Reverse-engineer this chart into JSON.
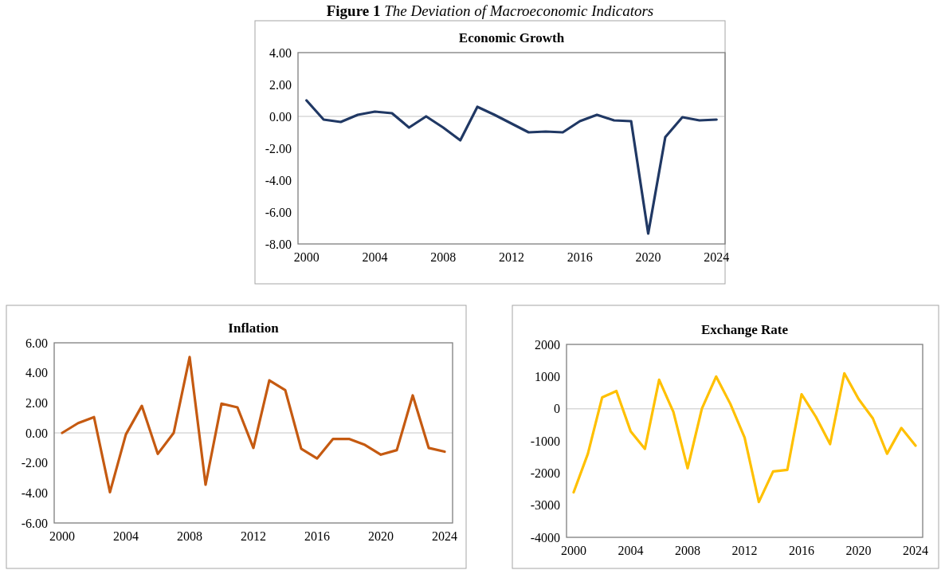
{
  "chart_data": [
    {
      "type": "line",
      "title": "Economic Growth",
      "annotations": [
        "Figure 1 The Deviation of Macroeconomic Indicators"
      ],
      "x": [
        2000,
        2001,
        2002,
        2003,
        2004,
        2005,
        2006,
        2007,
        2008,
        2009,
        2010,
        2011,
        2012,
        2013,
        2014,
        2015,
        2016,
        2017,
        2018,
        2019,
        2020,
        2021,
        2022,
        2023,
        2024
      ],
      "series": [
        {
          "color": "#203864",
          "values": [
            1.0,
            -0.2,
            -0.35,
            0.1,
            0.3,
            0.2,
            -0.7,
            0.0,
            -0.7,
            -1.5,
            0.6,
            0.1,
            -0.45,
            -1.0,
            -0.95,
            -1.0,
            -0.3,
            0.1,
            -0.25,
            -0.3,
            -7.35,
            -1.3,
            -0.05,
            -0.25,
            -0.2
          ]
        }
      ],
      "xlim": [
        1999.5,
        2024.5
      ],
      "xticks": [
        2000,
        2004,
        2008,
        2012,
        2016,
        2020,
        2024
      ],
      "ylim": [
        -8,
        4
      ],
      "yticks": [
        {
          "value": -8,
          "label": "-8.00"
        },
        {
          "value": -6,
          "label": "-6.00"
        },
        {
          "value": -4,
          "label": "-4.00"
        },
        {
          "value": -2,
          "label": "-2.00"
        },
        {
          "value": 0,
          "label": "0.00"
        },
        {
          "value": 2,
          "label": "2.00"
        },
        {
          "value": 4,
          "label": "4.00"
        }
      ],
      "ref_lines": [
        {
          "axis": "y",
          "value": 0,
          "color": "#d9d9d9"
        }
      ],
      "grid": false,
      "marker": "none",
      "line_style": "solid"
    },
    {
      "type": "line",
      "title": "Inflation",
      "x": [
        2000,
        2001,
        2002,
        2003,
        2004,
        2005,
        2006,
        2007,
        2008,
        2009,
        2010,
        2011,
        2012,
        2013,
        2014,
        2015,
        2016,
        2017,
        2018,
        2019,
        2020,
        2021,
        2022,
        2023,
        2024
      ],
      "series": [
        {
          "color": "#c55a11",
          "values": [
            0.0,
            0.65,
            1.05,
            -3.95,
            -0.1,
            1.8,
            -1.4,
            0.0,
            5.05,
            -3.45,
            1.95,
            1.7,
            -1.0,
            3.5,
            2.85,
            -1.05,
            -1.7,
            -0.4,
            -0.4,
            -0.8,
            -1.45,
            -1.15,
            2.5,
            -1.0,
            -1.25
          ]
        }
      ],
      "xlim": [
        1999.5,
        2024.5
      ],
      "xticks": [
        2000,
        2004,
        2008,
        2012,
        2016,
        2020,
        2024
      ],
      "ylim": [
        -6,
        6
      ],
      "yticks": [
        {
          "value": -6,
          "label": "-6.00"
        },
        {
          "value": -4,
          "label": "-4.00"
        },
        {
          "value": -2,
          "label": "-2.00"
        },
        {
          "value": 0,
          "label": "0.00"
        },
        {
          "value": 2,
          "label": "2.00"
        },
        {
          "value": 4,
          "label": "4.00"
        },
        {
          "value": 6,
          "label": "6.00"
        }
      ],
      "ref_lines": [
        {
          "axis": "y",
          "value": 0,
          "color": "#d9d9d9"
        }
      ],
      "grid": false,
      "marker": "none",
      "line_style": "solid"
    },
    {
      "type": "line",
      "title": "Exchange Rate",
      "x": [
        2000,
        2001,
        2002,
        2003,
        2004,
        2005,
        2006,
        2007,
        2008,
        2009,
        2010,
        2011,
        2012,
        2013,
        2014,
        2015,
        2016,
        2017,
        2018,
        2019,
        2020,
        2021,
        2022,
        2023,
        2024
      ],
      "series": [
        {
          "color": "#ffc000",
          "values": [
            -2600,
            -1400,
            350,
            550,
            -700,
            -1250,
            900,
            -100,
            -1850,
            0,
            1000,
            150,
            -900,
            -2900,
            -1950,
            -1900,
            450,
            -250,
            -1100,
            1100,
            300,
            -300,
            -1400,
            -600,
            -1150
          ]
        }
      ],
      "xlim": [
        1999.5,
        2024.5
      ],
      "xticks": [
        2000,
        2004,
        2008,
        2012,
        2016,
        2020,
        2024
      ],
      "ylim": [
        -4000,
        2000
      ],
      "yticks": [
        -4000,
        -3000,
        -2000,
        -1000,
        0,
        1000,
        2000
      ],
      "ref_lines": [
        {
          "axis": "y",
          "value": 0,
          "color": "#d9d9d9"
        }
      ],
      "grid": false,
      "marker": "none",
      "line_style": "solid"
    }
  ]
}
